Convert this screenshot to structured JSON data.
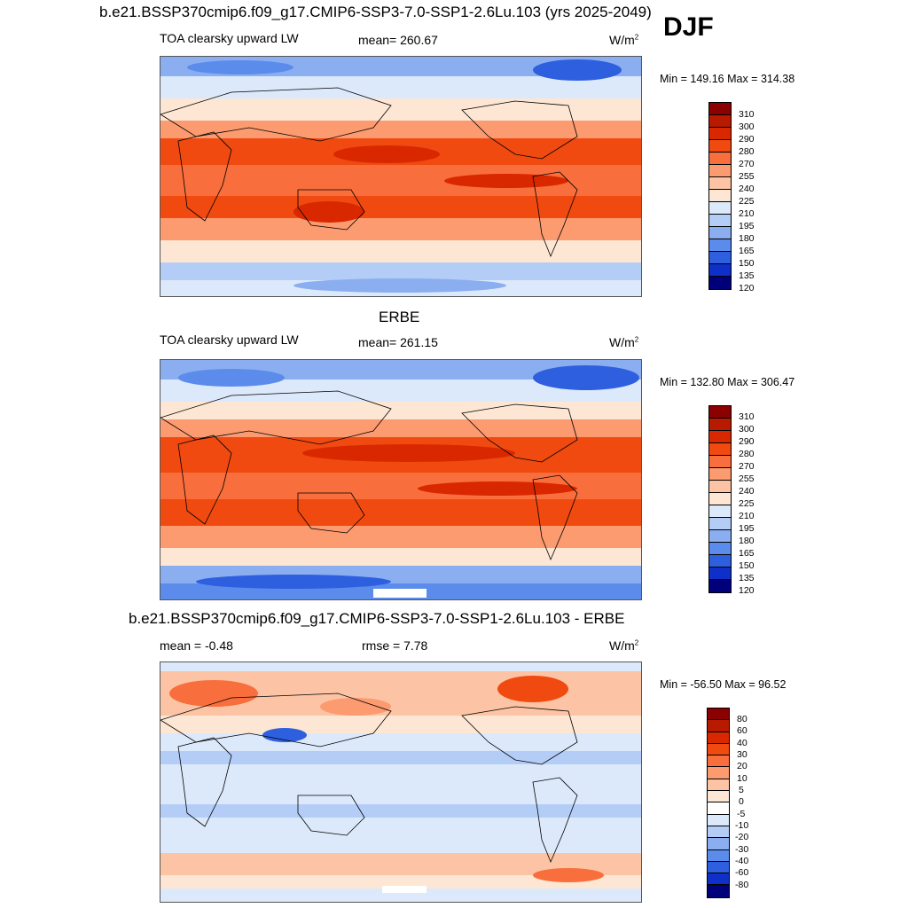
{
  "season": "DJF",
  "panels": [
    {
      "title": "b.e21.BSSP370cmip6.f09_g17.CMIP6-SSP3-7.0-SSP1-2.6Lu.103 (yrs 2025-2049)",
      "variable": "TOA clearsky upward LW",
      "stat_left": "",
      "mean": "mean= 260.67",
      "units_base": "W/m",
      "units_exp": "2",
      "minmax": "Min = 149.16 Max = 314.38",
      "levels": [
        "310",
        "300",
        "290",
        "280",
        "270",
        "255",
        "240",
        "225",
        "210",
        "195",
        "180",
        "165",
        "150",
        "135",
        "120"
      ],
      "colors": [
        "#8b0000",
        "#b81a00",
        "#d92800",
        "#f04a10",
        "#f86e3c",
        "#fc9a70",
        "#fcc4a4",
        "#fde6d4",
        "#dce9fb",
        "#b4cdf6",
        "#8aaef0",
        "#5c8ceb",
        "#2e5fdf",
        "#0e30c8",
        "#00007a"
      ]
    },
    {
      "title": "ERBE",
      "variable": "TOA clearsky upward LW",
      "mean": "mean= 261.15",
      "units_base": "W/m",
      "units_exp": "2",
      "minmax": "Min = 132.80 Max = 306.47",
      "levels": [
        "310",
        "300",
        "290",
        "280",
        "270",
        "255",
        "240",
        "225",
        "210",
        "195",
        "180",
        "165",
        "150",
        "135",
        "120"
      ],
      "colors": [
        "#8b0000",
        "#b81a00",
        "#d92800",
        "#f04a10",
        "#f86e3c",
        "#fc9a70",
        "#fcc4a4",
        "#fde6d4",
        "#dce9fb",
        "#b4cdf6",
        "#8aaef0",
        "#5c8ceb",
        "#2e5fdf",
        "#0e30c8",
        "#00007a"
      ]
    },
    {
      "title": "b.e21.BSSP370cmip6.f09_g17.CMIP6-SSP3-7.0-SSP1-2.6Lu.103 - ERBE",
      "variable": "mean =  -0.48",
      "mean": "rmse =   7.78",
      "units_base": "W/m",
      "units_exp": "2",
      "minmax": "Min = -56.50 Max =  96.52",
      "levels": [
        "80",
        "60",
        "40",
        "30",
        "20",
        "10",
        "5",
        "0",
        "-5",
        "-10",
        "-20",
        "-30",
        "-40",
        "-60",
        "-80"
      ],
      "colors": [
        "#8b0000",
        "#b81a00",
        "#d92800",
        "#f04a10",
        "#f86e3c",
        "#fc9a70",
        "#fcc4a4",
        "#fde6d4",
        "#ffffff",
        "#dce9fb",
        "#b4cdf6",
        "#8aaef0",
        "#5c8ceb",
        "#2e5fdf",
        "#0e30c8",
        "#00007a"
      ]
    }
  ]
}
